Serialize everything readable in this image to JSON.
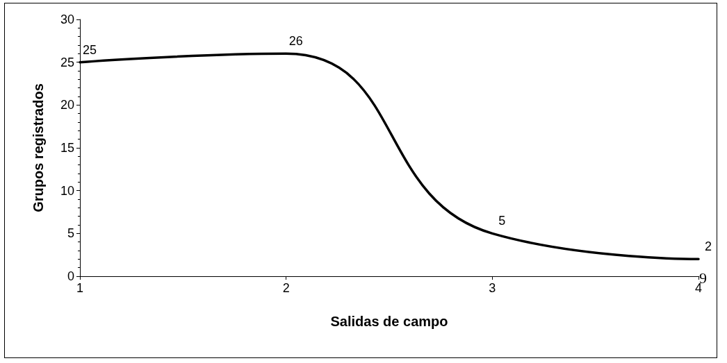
{
  "chart_data": {
    "type": "line",
    "xlabel": "Salidas de campo",
    "ylabel": "Grupos registrados",
    "x": [
      1,
      2,
      3,
      4
    ],
    "series": [
      {
        "color": "#000000",
        "values": [
          25,
          26,
          5,
          2
        ]
      }
    ],
    "xlim": [
      1,
      4
    ],
    "xticks": [
      1,
      2,
      3,
      4
    ],
    "ylim": [
      0,
      30
    ],
    "yticks": [
      0,
      5,
      10,
      15,
      20,
      25,
      30
    ],
    "data_labels": true,
    "grid": false,
    "marker": "none",
    "line_style": "solid",
    "annotations": [
      "9"
    ]
  }
}
